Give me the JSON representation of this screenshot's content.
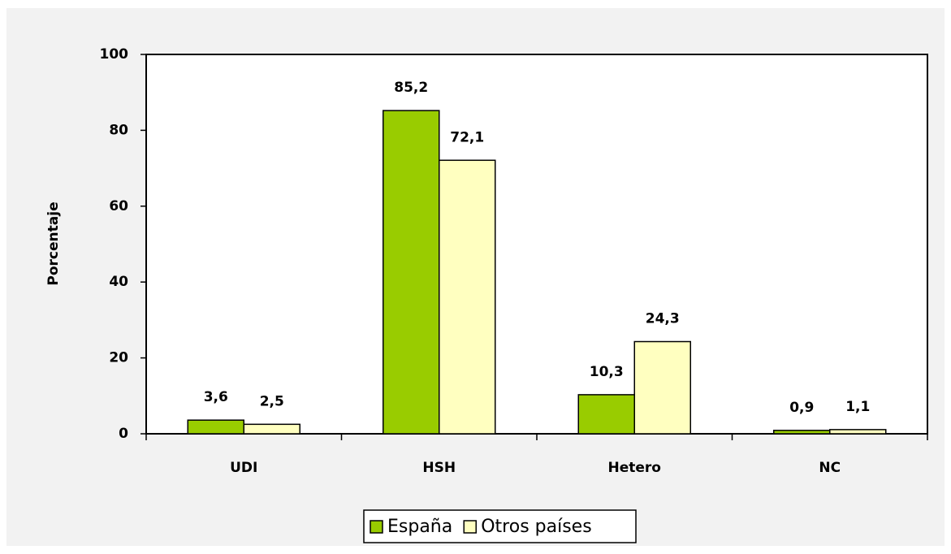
{
  "chart_data": {
    "type": "bar",
    "ylabel": "Porcentaje",
    "categories": [
      "UDI",
      "HSH",
      "Hetero",
      "NC"
    ],
    "series": [
      {
        "name": "España",
        "color": "#99cc00",
        "values": [
          3.6,
          85.2,
          10.3,
          0.9
        ],
        "value_labels": [
          "3,6",
          "85,2",
          "10,3",
          "0,9"
        ]
      },
      {
        "name": "Otros países",
        "color": "#ffffc0",
        "values": [
          2.5,
          72.1,
          24.3,
          1.1
        ],
        "value_labels": [
          "2,5",
          "72,1",
          "24,3",
          "1,1"
        ]
      }
    ],
    "ylim": [
      0,
      100
    ],
    "yticks": [
      0,
      20,
      40,
      60,
      80,
      100
    ],
    "grid": false,
    "legend": "bottom"
  }
}
